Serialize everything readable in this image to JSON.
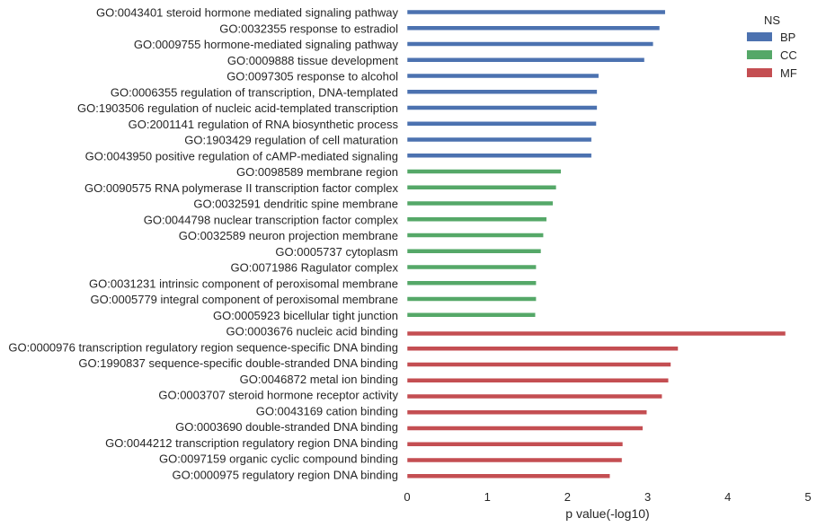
{
  "chart_data": {
    "type": "bar",
    "orientation": "horizontal",
    "xlabel": "p value(-log10)",
    "xlim": [
      0,
      5
    ],
    "x_ticks": [
      "0",
      "1",
      "2",
      "3",
      "4",
      "5"
    ],
    "grid": false,
    "legend": {
      "title": "NS",
      "placement": "top-right",
      "entries": [
        {
          "name": "BP",
          "color": "#4c72b0"
        },
        {
          "name": "CC",
          "color": "#55a868"
        },
        {
          "name": "MF",
          "color": "#c44e52"
        }
      ]
    },
    "categories": [
      {
        "label": "GO:0043401 steroid hormone mediated signaling pathway",
        "value": 3.22,
        "group": "BP"
      },
      {
        "label": "GO:0032355 response to estradiol",
        "value": 3.15,
        "group": "BP"
      },
      {
        "label": "GO:0009755 hormone-mediated signaling pathway",
        "value": 3.07,
        "group": "BP"
      },
      {
        "label": "GO:0009888 tissue development",
        "value": 2.96,
        "group": "BP"
      },
      {
        "label": "GO:0097305 response to alcohol",
        "value": 2.39,
        "group": "BP"
      },
      {
        "label": "GO:0006355 regulation of transcription, DNA-templated",
        "value": 2.37,
        "group": "BP"
      },
      {
        "label": "GO:1903506 regulation of nucleic acid-templated transcription",
        "value": 2.37,
        "group": "BP"
      },
      {
        "label": "GO:2001141 regulation of RNA biosynthetic process",
        "value": 2.36,
        "group": "BP"
      },
      {
        "label": "GO:1903429 regulation of cell maturation",
        "value": 2.3,
        "group": "BP"
      },
      {
        "label": "GO:0043950 positive regulation of cAMP-mediated signaling",
        "value": 2.3,
        "group": "BP"
      },
      {
        "label": "GO:0098589 membrane region",
        "value": 1.92,
        "group": "CC"
      },
      {
        "label": "GO:0090575 RNA polymerase II transcription factor complex",
        "value": 1.86,
        "group": "CC"
      },
      {
        "label": "GO:0032591 dendritic spine membrane",
        "value": 1.82,
        "group": "CC"
      },
      {
        "label": "GO:0044798 nuclear transcription factor complex",
        "value": 1.74,
        "group": "CC"
      },
      {
        "label": "GO:0032589 neuron projection membrane",
        "value": 1.7,
        "group": "CC"
      },
      {
        "label": "GO:0005737 cytoplasm",
        "value": 1.67,
        "group": "CC"
      },
      {
        "label": "GO:0071986 Ragulator complex",
        "value": 1.61,
        "group": "CC"
      },
      {
        "label": "GO:0031231 intrinsic component of peroxisomal membrane",
        "value": 1.61,
        "group": "CC"
      },
      {
        "label": "GO:0005779 integral component of peroxisomal membrane",
        "value": 1.61,
        "group": "CC"
      },
      {
        "label": "GO:0005923 bicellular tight junction",
        "value": 1.6,
        "group": "CC"
      },
      {
        "label": "GO:0003676 nucleic acid binding",
        "value": 4.72,
        "group": "MF"
      },
      {
        "label": "GO:0000976 transcription regulatory region sequence-specific DNA binding",
        "value": 3.38,
        "group": "MF"
      },
      {
        "label": "GO:1990837 sequence-specific double-stranded DNA binding",
        "value": 3.29,
        "group": "MF"
      },
      {
        "label": "GO:0046872 metal ion binding",
        "value": 3.26,
        "group": "MF"
      },
      {
        "label": "GO:0003707 steroid hormone receptor activity",
        "value": 3.18,
        "group": "MF"
      },
      {
        "label": "GO:0043169 cation binding",
        "value": 2.99,
        "group": "MF"
      },
      {
        "label": "GO:0003690 double-stranded DNA binding",
        "value": 2.94,
        "group": "MF"
      },
      {
        "label": "GO:0044212 transcription regulatory region DNA binding",
        "value": 2.69,
        "group": "MF"
      },
      {
        "label": "GO:0097159 organic cyclic compound binding",
        "value": 2.68,
        "group": "MF"
      },
      {
        "label": "GO:0000975 regulatory region DNA binding",
        "value": 2.53,
        "group": "MF"
      }
    ]
  }
}
